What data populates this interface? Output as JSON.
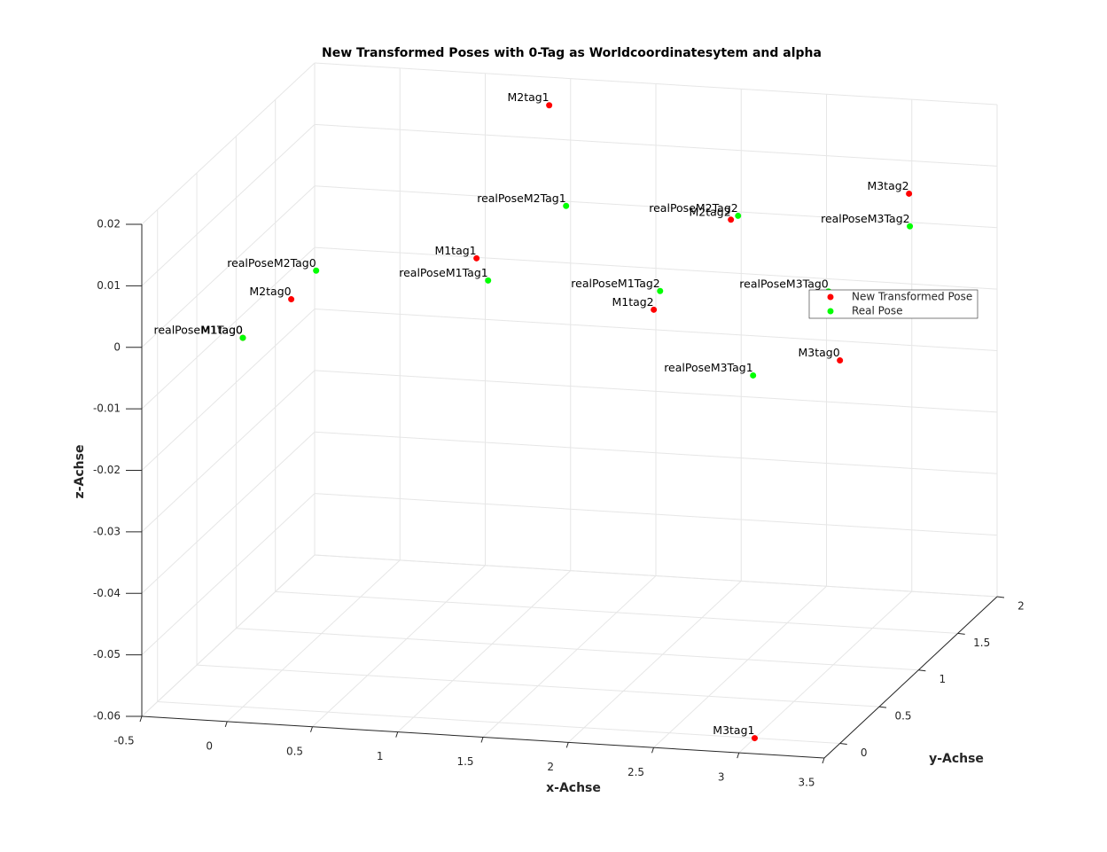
{
  "chart_data": {
    "type": "scatter3d",
    "title": "New Transformed Poses with 0-Tag as Worldcoordinatesytem and alpha",
    "xlabel": "x-Achse",
    "ylabel": "y-Achse",
    "zlabel": "z-Achse",
    "xlim": [
      -0.5,
      3.5
    ],
    "xticks": [
      -0.5,
      0,
      0.5,
      1,
      1.5,
      2,
      2.5,
      3,
      3.5
    ],
    "ylim": [
      -0.2,
      2
    ],
    "yticks": [
      0,
      0.5,
      1,
      1.5,
      2
    ],
    "zlim": [
      -0.06,
      0.02
    ],
    "zticks": [
      -0.06,
      -0.05,
      -0.04,
      -0.03,
      -0.02,
      -0.01,
      0,
      0.01,
      0.02
    ],
    "grid": true,
    "series": [
      {
        "name": "New Transformed Pose",
        "color": "#ff0000",
        "labels": [
          "M1tag0",
          "M1tag1",
          "M1tag2",
          "M2tag0",
          "M2tag1",
          "M2tag2",
          "M3tag0",
          "M3tag1",
          "M3tag2"
        ],
        "x": [
          0,
          0.679,
          1.718,
          -0.407,
          1.105,
          2.17,
          2.809,
          3,
          3.214
        ],
        "y": [
          0,
          1.5,
          1.5,
          1.5,
          1.5,
          1.5,
          1.5,
          0,
          1.5
        ],
        "z": [
          0,
          -0.0038,
          -0.0104,
          -0.0123,
          0.0218,
          0.005,
          -0.0168,
          -0.06,
          0.011
        ]
      },
      {
        "name": "Real Pose",
        "color": "#00ff00",
        "labels": [
          "realPoseM1Tag0",
          "realPoseM1Tag1",
          "realPoseM1Tag2",
          "realPoseM2Tag0",
          "realPoseM2Tag1",
          "realPoseM2Tag2",
          "realPoseM3Tag0",
          "realPoseM3Tag1",
          "realPoseM3Tag2"
        ],
        "x": [
          0,
          0.747,
          1.755,
          -0.261,
          1.204,
          2.212,
          2.742,
          2.3,
          3.219
        ],
        "y": [
          0,
          1.5,
          1.5,
          1.5,
          1.5,
          1.5,
          1.5,
          1.5,
          1.5
        ],
        "z": [
          0,
          -0.0073,
          -0.0073,
          -0.0074,
          0.0056,
          0.0057,
          -0.0057,
          -0.0201,
          0.0057
        ]
      }
    ]
  }
}
